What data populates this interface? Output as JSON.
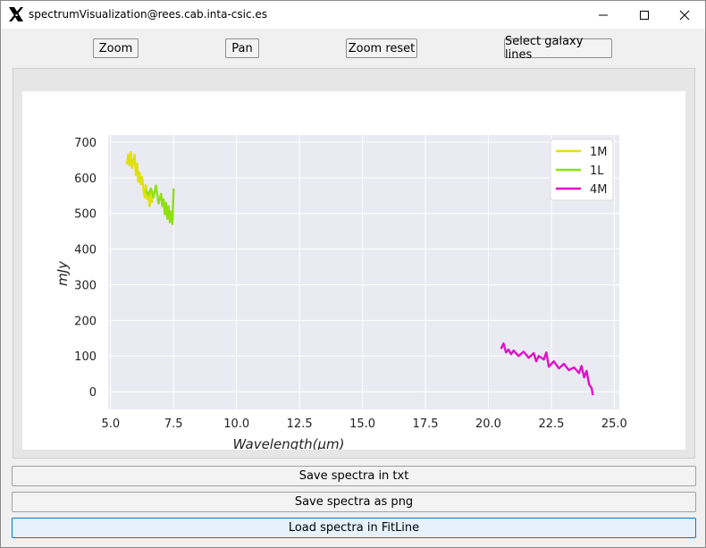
{
  "window": {
    "title": "spectrumVisualization@rees.cab.inta-csic.es"
  },
  "toolbar": {
    "zoom_label": "Zoom",
    "pan_label": "Pan",
    "zoom_reset_label": "Zoom reset",
    "select_lines_label": "Select galaxy lines"
  },
  "actions": {
    "save_txt_label": "Save spectra in txt",
    "save_png_label": "Save spectra as png",
    "load_fitline_label": "Load spectra in FitLine"
  },
  "icons": {
    "app": "x-logo-icon",
    "minimize": "minimize-icon",
    "maximize": "maximize-icon",
    "close": "close-icon"
  },
  "chart_data": {
    "type": "line",
    "title": "",
    "xlabel": "Wavelength(μm)",
    "ylabel": "mJy",
    "xlim": [
      4.9,
      25.2
    ],
    "ylim": [
      -50,
      720
    ],
    "xticks": [
      "5.0",
      "7.5",
      "10.0",
      "12.5",
      "15.0",
      "17.5",
      "20.0",
      "22.5",
      "25.0"
    ],
    "yticks": [
      "0",
      "100",
      "200",
      "300",
      "400",
      "500",
      "600",
      "700"
    ],
    "grid": true,
    "legend_placement": "top-right",
    "series": [
      {
        "name": "1M",
        "color": "#dfe010",
        "x": [
          5.65,
          5.7,
          5.75,
          5.8,
          5.85,
          5.9,
          5.95,
          6.0,
          6.05,
          6.1,
          6.15,
          6.2,
          6.25,
          6.3,
          6.35,
          6.4,
          6.45,
          6.5,
          6.55,
          6.6,
          6.65
        ],
        "y": [
          638,
          665,
          635,
          672,
          628,
          645,
          665,
          608,
          640,
          588,
          615,
          582,
          602,
          570,
          545,
          580,
          540,
          555,
          520,
          560,
          530
        ]
      },
      {
        "name": "1L",
        "color": "#8fe012",
        "x": [
          6.4,
          6.5,
          6.6,
          6.7,
          6.8,
          6.9,
          7.0,
          7.05,
          7.1,
          7.15,
          7.2,
          7.25,
          7.3,
          7.35,
          7.4,
          7.45,
          7.5
        ],
        "y": [
          565,
          552,
          570,
          545,
          578,
          528,
          555,
          520,
          540,
          498,
          530,
          485,
          520,
          475,
          505,
          470,
          570
        ]
      },
      {
        "name": "4M",
        "color": "#e010c8",
        "x": [
          20.5,
          20.6,
          20.7,
          20.8,
          20.9,
          21.0,
          21.2,
          21.4,
          21.6,
          21.8,
          21.9,
          22.0,
          22.2,
          22.3,
          22.4,
          22.6,
          22.8,
          23.0,
          23.2,
          23.4,
          23.6,
          23.7,
          23.8,
          23.9,
          24.0,
          24.1,
          24.15
        ],
        "y": [
          120,
          135,
          110,
          118,
          105,
          115,
          100,
          112,
          95,
          108,
          85,
          100,
          90,
          110,
          70,
          85,
          65,
          78,
          60,
          68,
          52,
          72,
          40,
          58,
          20,
          10,
          -10
        ]
      }
    ]
  }
}
